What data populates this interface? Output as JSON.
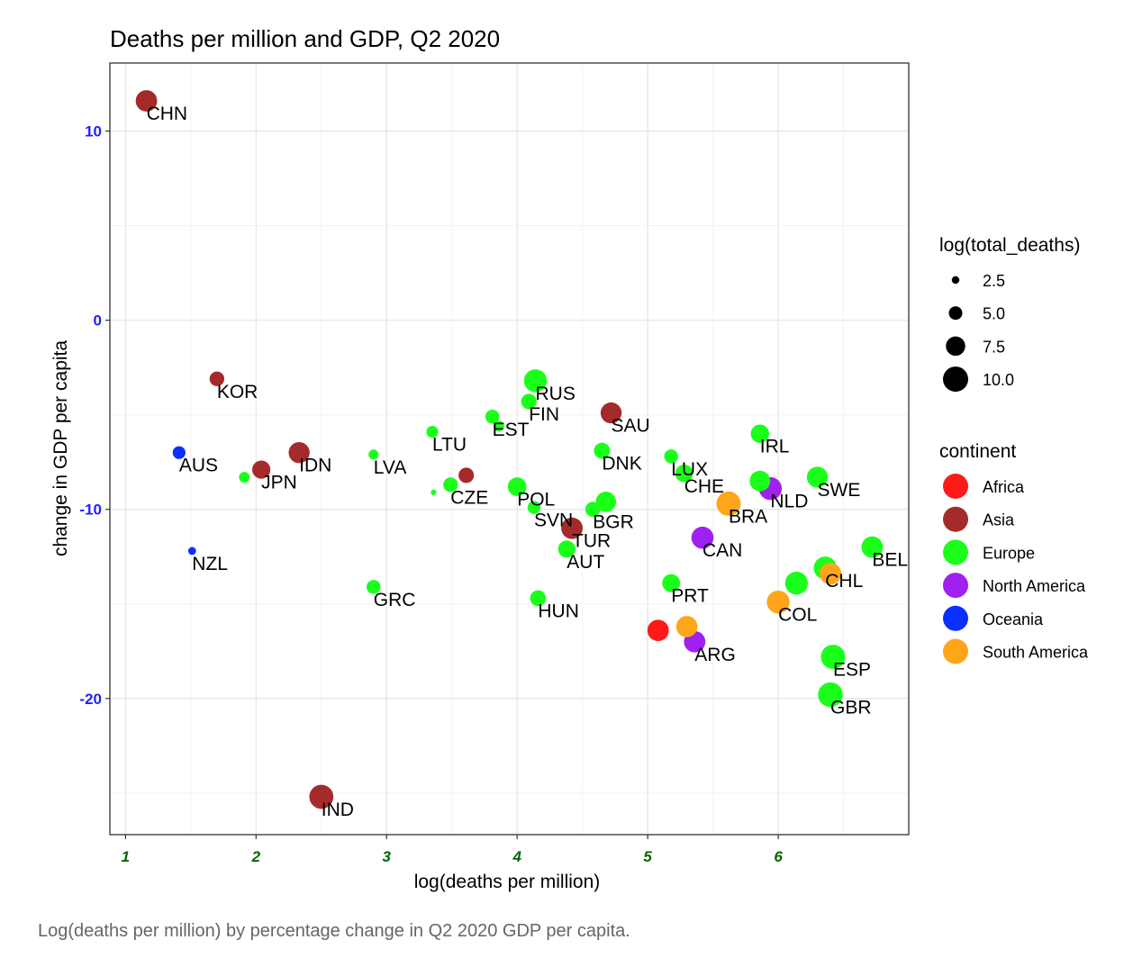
{
  "caption": "Log(deaths per million) by percentage change in Q2 2020 GDP per capita.",
  "colors": {
    "Africa": "#ff1a1a",
    "Asia": "#a52a2a",
    "Europe": "#1aff1a",
    "North America": "#a020f0",
    "Oceania": "#0a2fff",
    "South America": "#ffa51a"
  },
  "chart_data": {
    "type": "scatter",
    "title": "Deaths per million and GDP, Q2 2020",
    "xlabel": "log(deaths per million)",
    "ylabel": "change in GDP per capita",
    "xlim": [
      0.88,
      7.0
    ],
    "ylim": [
      -27.2,
      13.6
    ],
    "x_ticks": [
      1,
      2,
      3,
      4,
      5,
      6
    ],
    "y_ticks": [
      10,
      0,
      -10,
      -20
    ],
    "grid": true,
    "legend_position": "right",
    "size_legend": {
      "title": "log(total_deaths)",
      "values": [
        2.5,
        5.0,
        7.5,
        10.0
      ]
    },
    "color_legend": {
      "title": "continent",
      "categories": [
        "Africa",
        "Asia",
        "Europe",
        "North America",
        "Oceania",
        "South America"
      ]
    },
    "points": [
      {
        "label": "CHN",
        "x": 1.16,
        "y": 11.6,
        "size": 8.4,
        "continent": "Asia"
      },
      {
        "label": "KOR",
        "x": 1.7,
        "y": -3.1,
        "size": 5.5,
        "continent": "Asia"
      },
      {
        "label": "AUS",
        "x": 1.41,
        "y": -7.0,
        "size": 4.7,
        "continent": "Oceania"
      },
      {
        "label": "NZL",
        "x": 1.51,
        "y": -12.2,
        "size": 2.6,
        "continent": "Oceania"
      },
      {
        "label": "JPN",
        "x": 2.04,
        "y": -7.9,
        "size": 7.0,
        "continent": "Asia"
      },
      {
        "label": "",
        "x": 1.91,
        "y": -8.3,
        "size": 3.8,
        "continent": "Europe"
      },
      {
        "label": "IDN",
        "x": 2.33,
        "y": -7.0,
        "size": 8.2,
        "continent": "Asia"
      },
      {
        "label": "IND",
        "x": 2.5,
        "y": -25.2,
        "size": 9.5,
        "continent": "Asia"
      },
      {
        "label": "LVA",
        "x": 2.9,
        "y": -7.1,
        "size": 3.5,
        "continent": "Europe"
      },
      {
        "label": "GRC",
        "x": 2.9,
        "y": -14.1,
        "size": 5.2,
        "continent": "Europe"
      },
      {
        "label": "LTU",
        "x": 3.35,
        "y": -5.9,
        "size": 4.3,
        "continent": "Europe"
      },
      {
        "label": "",
        "x": 3.36,
        "y": -9.1,
        "size": 1.6,
        "continent": "Europe"
      },
      {
        "label": "CZE",
        "x": 3.49,
        "y": -8.7,
        "size": 5.5,
        "continent": "Europe"
      },
      {
        "label": "",
        "x": 3.61,
        "y": -8.2,
        "size": 5.8,
        "continent": "Asia"
      },
      {
        "label": "EST",
        "x": 3.81,
        "y": -5.1,
        "size": 5.2,
        "continent": "Europe"
      },
      {
        "label": "",
        "x": 3.86,
        "y": -5.6,
        "size": 3.8,
        "continent": "Europe"
      },
      {
        "label": "POL",
        "x": 4.0,
        "y": -8.8,
        "size": 7.2,
        "continent": "Europe"
      },
      {
        "label": "RUS",
        "x": 4.14,
        "y": -3.2,
        "size": 9.0,
        "continent": "Europe"
      },
      {
        "label": "FIN",
        "x": 4.09,
        "y": -4.3,
        "size": 5.9,
        "continent": "Europe"
      },
      {
        "label": "SVN",
        "x": 4.13,
        "y": -9.9,
        "size": 4.8,
        "continent": "Europe"
      },
      {
        "label": "HUN",
        "x": 4.16,
        "y": -14.7,
        "size": 6.0,
        "continent": "Europe"
      },
      {
        "label": "TUR",
        "x": 4.42,
        "y": -11.0,
        "size": 8.4,
        "continent": "Asia"
      },
      {
        "label": "AUT",
        "x": 4.38,
        "y": -12.1,
        "size": 6.6,
        "continent": "Europe"
      },
      {
        "label": "BGR",
        "x": 4.58,
        "y": -10.0,
        "size": 5.7,
        "continent": "Europe"
      },
      {
        "label": "",
        "x": 4.68,
        "y": -9.6,
        "size": 7.9,
        "continent": "Europe"
      },
      {
        "label": "DNK",
        "x": 4.65,
        "y": -6.9,
        "size": 6.1,
        "continent": "Europe"
      },
      {
        "label": "SAU",
        "x": 4.72,
        "y": -4.9,
        "size": 8.2,
        "continent": "Asia"
      },
      {
        "label": "LUX",
        "x": 5.18,
        "y": -7.2,
        "size": 5.2,
        "continent": "Europe"
      },
      {
        "label": "CHE",
        "x": 5.28,
        "y": -8.1,
        "size": 6.8,
        "continent": "Europe"
      },
      {
        "label": "PRT",
        "x": 5.18,
        "y": -13.9,
        "size": 6.9,
        "continent": "Europe"
      },
      {
        "label": "",
        "x": 5.08,
        "y": -16.4,
        "size": 8.4,
        "continent": "Africa"
      },
      {
        "label": "",
        "x": 5.3,
        "y": -16.2,
        "size": 8.3,
        "continent": "South America"
      },
      {
        "label": "ARG",
        "x": 5.36,
        "y": -17.0,
        "size": 8.4,
        "continent": "North America"
      },
      {
        "label": "CAN",
        "x": 5.42,
        "y": -11.5,
        "size": 8.7,
        "continent": "North America"
      },
      {
        "label": "BRA",
        "x": 5.62,
        "y": -9.7,
        "size": 9.6,
        "continent": "South America"
      },
      {
        "label": "IRL",
        "x": 5.86,
        "y": -6.0,
        "size": 7.1,
        "continent": "Europe"
      },
      {
        "label": "",
        "x": 5.86,
        "y": -8.5,
        "size": 8.0,
        "continent": "Europe"
      },
      {
        "label": "NLD",
        "x": 5.94,
        "y": -8.9,
        "size": 9.0,
        "continent": "North America"
      },
      {
        "label": "COL",
        "x": 6.0,
        "y": -14.9,
        "size": 9.0,
        "continent": "South America"
      },
      {
        "label": "SWE",
        "x": 6.3,
        "y": -8.3,
        "size": 8.2,
        "continent": "Europe"
      },
      {
        "label": "",
        "x": 6.14,
        "y": -13.9,
        "size": 9.0,
        "continent": "Europe"
      },
      {
        "label": "",
        "x": 6.4,
        "y": -13.4,
        "size": 8.5,
        "continent": "South America"
      },
      {
        "label": "CHL",
        "x": 6.36,
        "y": -13.1,
        "size": 9.0,
        "continent": "Europe"
      },
      {
        "label": "BEL",
        "x": 6.72,
        "y": -12.0,
        "size": 8.4,
        "continent": "Europe"
      },
      {
        "label": "ESP",
        "x": 6.42,
        "y": -17.8,
        "size": 9.6,
        "continent": "Europe"
      },
      {
        "label": "GBR",
        "x": 6.4,
        "y": -19.8,
        "size": 9.8,
        "continent": "Europe"
      }
    ]
  }
}
